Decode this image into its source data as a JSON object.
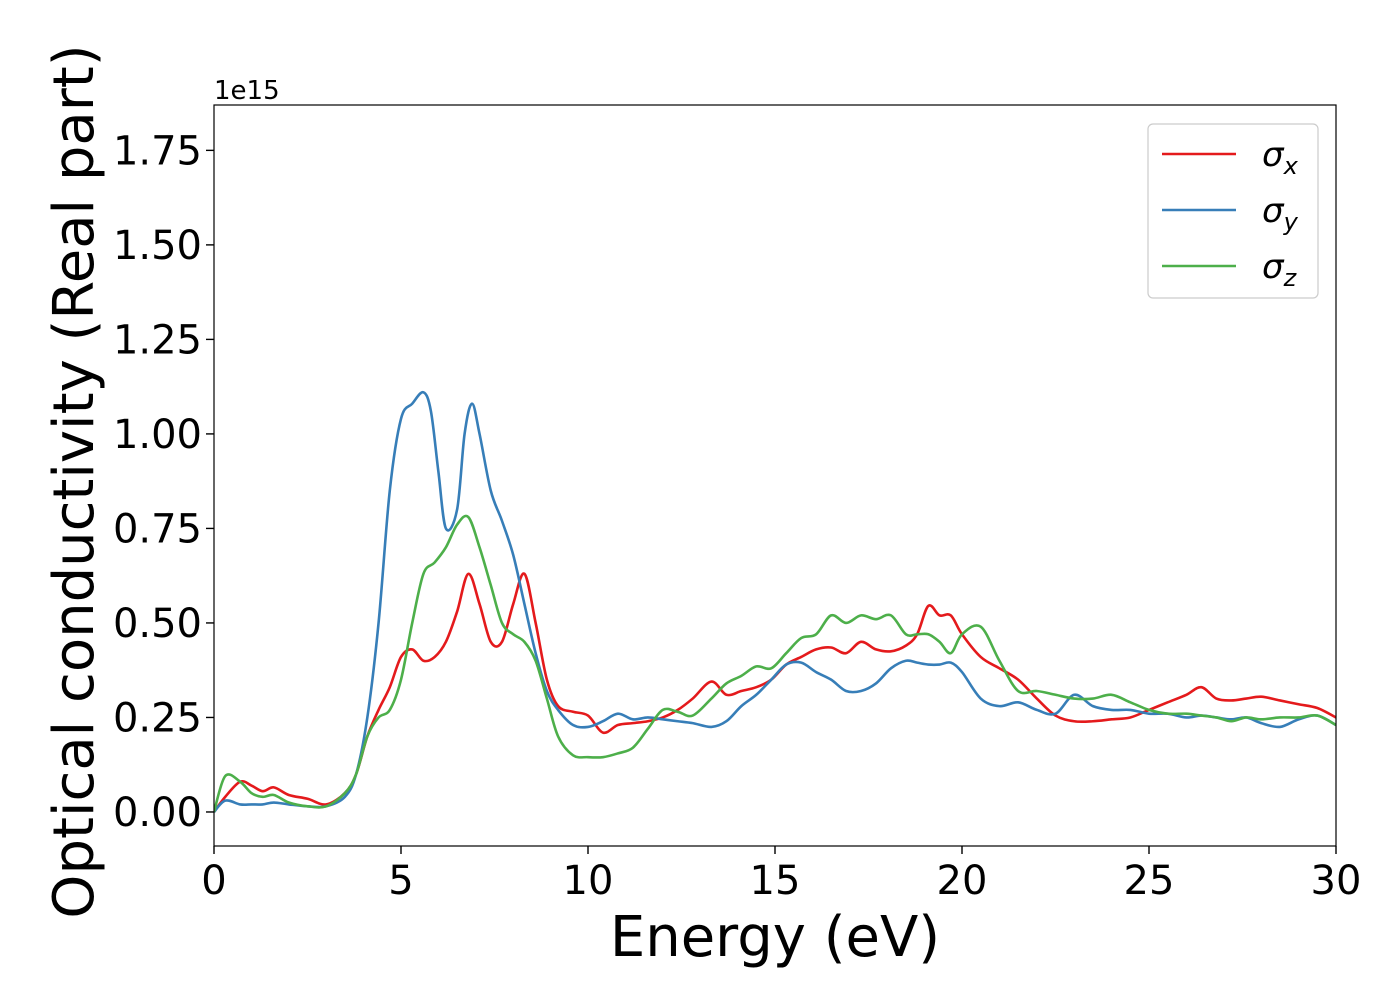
{
  "chart_data": {
    "type": "line",
    "title": "",
    "xlabel": "Energy (eV)",
    "ylabel": "Optical conductivity (Real part)",
    "y_offset_label": "1e15",
    "xlim": [
      0,
      30
    ],
    "ylim": [
      -0.09,
      1.87
    ],
    "xticks": [
      0,
      5,
      10,
      15,
      20,
      25,
      30
    ],
    "xtick_labels": [
      "0",
      "5",
      "10",
      "15",
      "20",
      "25",
      "30"
    ],
    "yticks": [
      0.0,
      0.25,
      0.5,
      0.75,
      1.0,
      1.25,
      1.5,
      1.75
    ],
    "ytick_labels": [
      "0.00",
      "0.25",
      "0.50",
      "0.75",
      "1.00",
      "1.25",
      "1.50",
      "1.75"
    ],
    "grid": false,
    "legend_position": "top-right",
    "series": [
      {
        "name": "σx",
        "legend_base": "σ",
        "legend_sub": "x",
        "color": "#e41a1c",
        "x": [
          0,
          0.3,
          0.7,
          1.0,
          1.3,
          1.6,
          2.0,
          2.5,
          3.0,
          3.5,
          3.8,
          4.1,
          4.4,
          4.7,
          5.0,
          5.3,
          5.6,
          5.9,
          6.2,
          6.5,
          6.8,
          7.1,
          7.4,
          7.7,
          8.0,
          8.3,
          8.6,
          8.9,
          9.2,
          9.6,
          10.0,
          10.4,
          10.8,
          11.2,
          11.6,
          12.0,
          12.4,
          12.8,
          13.3,
          13.7,
          14.1,
          14.5,
          14.9,
          15.3,
          15.7,
          16.1,
          16.5,
          16.9,
          17.3,
          17.7,
          18.1,
          18.5,
          18.8,
          19.1,
          19.4,
          19.7,
          20.0,
          20.5,
          21.0,
          21.5,
          22.0,
          22.5,
          23.0,
          23.5,
          24.0,
          24.5,
          25.0,
          25.5,
          26.0,
          26.4,
          26.8,
          27.2,
          27.6,
          28.0,
          28.5,
          29.0,
          29.5,
          30.0
        ],
        "values": [
          0.0,
          0.04,
          0.08,
          0.07,
          0.055,
          0.065,
          0.045,
          0.035,
          0.02,
          0.05,
          0.1,
          0.2,
          0.27,
          0.33,
          0.41,
          0.43,
          0.4,
          0.41,
          0.45,
          0.53,
          0.63,
          0.55,
          0.45,
          0.45,
          0.55,
          0.63,
          0.5,
          0.35,
          0.28,
          0.265,
          0.255,
          0.21,
          0.23,
          0.235,
          0.24,
          0.25,
          0.27,
          0.3,
          0.345,
          0.31,
          0.32,
          0.33,
          0.35,
          0.39,
          0.41,
          0.43,
          0.435,
          0.42,
          0.45,
          0.43,
          0.425,
          0.44,
          0.47,
          0.545,
          0.52,
          0.52,
          0.47,
          0.41,
          0.38,
          0.35,
          0.3,
          0.255,
          0.24,
          0.24,
          0.245,
          0.25,
          0.27,
          0.29,
          0.31,
          0.33,
          0.3,
          0.295,
          0.3,
          0.305,
          0.295,
          0.285,
          0.275,
          0.25
        ]
      },
      {
        "name": "σy",
        "legend_base": "σ",
        "legend_sub": "y",
        "color": "#377eb8",
        "x": [
          0,
          0.3,
          0.7,
          1.0,
          1.3,
          1.6,
          2.0,
          2.5,
          3.0,
          3.5,
          3.8,
          4.1,
          4.4,
          4.7,
          5.0,
          5.3,
          5.6,
          5.8,
          6.0,
          6.2,
          6.5,
          6.7,
          6.9,
          7.1,
          7.4,
          7.7,
          8.0,
          8.3,
          8.6,
          8.9,
          9.2,
          9.6,
          10.0,
          10.4,
          10.8,
          11.2,
          11.6,
          12.0,
          12.4,
          12.8,
          13.3,
          13.7,
          14.1,
          14.5,
          14.9,
          15.3,
          15.7,
          16.1,
          16.5,
          16.9,
          17.3,
          17.7,
          18.1,
          18.5,
          18.8,
          19.1,
          19.4,
          19.7,
          20.0,
          20.5,
          21.0,
          21.5,
          22.0,
          22.5,
          23.0,
          23.5,
          24.0,
          24.5,
          25.0,
          25.5,
          26.0,
          26.4,
          26.8,
          27.2,
          27.6,
          28.0,
          28.5,
          29.0,
          29.5,
          30.0
        ],
        "values": [
          0.0,
          0.03,
          0.02,
          0.02,
          0.02,
          0.025,
          0.02,
          0.015,
          0.015,
          0.04,
          0.1,
          0.25,
          0.5,
          0.85,
          1.04,
          1.08,
          1.11,
          1.06,
          0.9,
          0.75,
          0.8,
          1.0,
          1.08,
          1.0,
          0.85,
          0.77,
          0.68,
          0.55,
          0.42,
          0.32,
          0.27,
          0.23,
          0.225,
          0.24,
          0.26,
          0.245,
          0.25,
          0.245,
          0.24,
          0.235,
          0.225,
          0.24,
          0.28,
          0.31,
          0.35,
          0.39,
          0.395,
          0.37,
          0.35,
          0.32,
          0.32,
          0.34,
          0.38,
          0.4,
          0.395,
          0.39,
          0.39,
          0.395,
          0.37,
          0.3,
          0.28,
          0.29,
          0.27,
          0.26,
          0.31,
          0.28,
          0.27,
          0.27,
          0.26,
          0.26,
          0.25,
          0.255,
          0.25,
          0.245,
          0.25,
          0.235,
          0.225,
          0.245,
          0.255,
          0.23
        ]
      },
      {
        "name": "σz",
        "legend_base": "σ",
        "legend_sub": "z",
        "color": "#4daf4a",
        "x": [
          0,
          0.3,
          0.7,
          1.0,
          1.3,
          1.6,
          2.0,
          2.5,
          3.0,
          3.5,
          3.8,
          4.1,
          4.4,
          4.7,
          5.0,
          5.3,
          5.6,
          5.9,
          6.2,
          6.5,
          6.8,
          7.1,
          7.4,
          7.7,
          8.0,
          8.3,
          8.6,
          8.9,
          9.2,
          9.6,
          10.0,
          10.4,
          10.8,
          11.2,
          11.6,
          12.0,
          12.4,
          12.8,
          13.3,
          13.7,
          14.1,
          14.5,
          14.9,
          15.3,
          15.7,
          16.1,
          16.5,
          16.9,
          17.3,
          17.7,
          18.1,
          18.5,
          18.8,
          19.1,
          19.4,
          19.7,
          20.0,
          20.5,
          21.0,
          21.5,
          22.0,
          22.5,
          23.0,
          23.5,
          24.0,
          24.5,
          25.0,
          25.5,
          26.0,
          26.4,
          26.8,
          27.2,
          27.6,
          28.0,
          28.5,
          29.0,
          29.5,
          30.0
        ],
        "values": [
          0.0,
          0.095,
          0.08,
          0.05,
          0.04,
          0.045,
          0.025,
          0.015,
          0.015,
          0.05,
          0.1,
          0.2,
          0.25,
          0.27,
          0.35,
          0.5,
          0.63,
          0.66,
          0.7,
          0.76,
          0.78,
          0.7,
          0.6,
          0.5,
          0.47,
          0.45,
          0.4,
          0.3,
          0.2,
          0.15,
          0.145,
          0.145,
          0.155,
          0.17,
          0.22,
          0.27,
          0.265,
          0.255,
          0.3,
          0.34,
          0.36,
          0.385,
          0.38,
          0.42,
          0.46,
          0.47,
          0.52,
          0.5,
          0.52,
          0.51,
          0.52,
          0.47,
          0.47,
          0.47,
          0.45,
          0.42,
          0.47,
          0.49,
          0.4,
          0.32,
          0.32,
          0.31,
          0.3,
          0.3,
          0.31,
          0.29,
          0.27,
          0.26,
          0.26,
          0.255,
          0.25,
          0.24,
          0.25,
          0.245,
          0.25,
          0.25,
          0.255,
          0.23
        ]
      }
    ]
  }
}
